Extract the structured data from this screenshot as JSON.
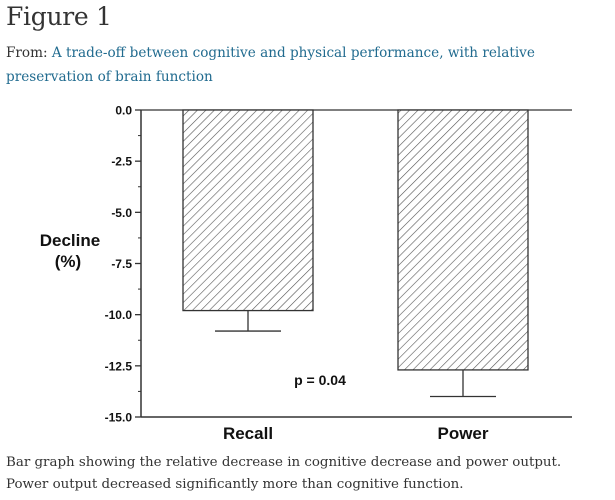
{
  "page": {
    "title": "Figure 1",
    "from_prefix": "From:",
    "from_link": "A trade-off between cognitive and physical performance, with relative preservation of brain function",
    "caption": "Bar graph showing the relative decrease in cognitive decrease and power output. Power output decreased significantly more than cognitive function."
  },
  "chart_data": {
    "type": "bar",
    "categories": [
      "Recall",
      "Power"
    ],
    "values": [
      -9.8,
      -12.7
    ],
    "error": [
      1.0,
      1.3
    ],
    "ylabel": "Decline\n(%)",
    "ylabel_lines": [
      "Decline",
      "(%)"
    ],
    "ylim": [
      -15,
      0
    ],
    "yticks": [
      "0.0",
      "-2.5",
      "-5.0",
      "-7.5",
      "-10.0",
      "-12.5",
      "-15.0"
    ],
    "yticks_values": [
      0,
      -2.5,
      -5,
      -7.5,
      -10,
      -12.5,
      -15
    ],
    "annotation": "p = 0.04",
    "bar_fill": "hatched",
    "grid": false,
    "colors": {
      "axis": "#333333",
      "bar_stroke": "#333333",
      "hatch": "#555555"
    }
  }
}
